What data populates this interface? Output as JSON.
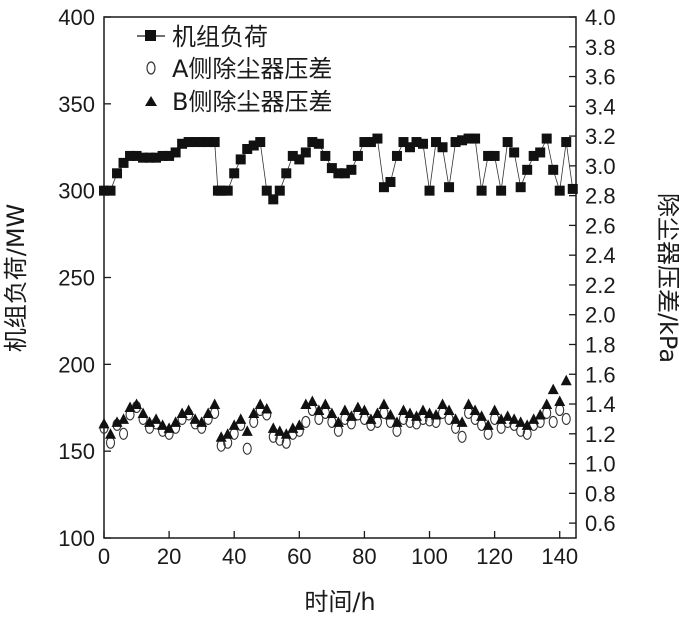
{
  "chart_data": {
    "type": "scatter",
    "xlabel": "时间/h",
    "ylabel_left": "机组负荷/MW",
    "ylabel_right": "除尘器压差/kPa",
    "xlim": [
      0,
      145
    ],
    "ylim_left": [
      100,
      400
    ],
    "ylim_right": [
      0.5,
      4.0
    ],
    "x_ticks": [
      "0",
      "20",
      "40",
      "60",
      "80",
      "100",
      "120",
      "140"
    ],
    "y_left_ticks": [
      "100",
      "150",
      "200",
      "250",
      "300",
      "350",
      "400"
    ],
    "y_right_ticks": [
      "0.6",
      "0.8",
      "1.0",
      "1.2",
      "1.4",
      "1.6",
      "1.8",
      "2.0",
      "2.2",
      "2.4",
      "2.6",
      "2.8",
      "3.0",
      "3.2",
      "3.4",
      "3.6",
      "3.8",
      "4.0"
    ],
    "legend_position": "top-left",
    "series": [
      {
        "name": "机组负荷",
        "axis": "left",
        "marker": "square",
        "connected": true,
        "x": [
          0,
          2,
          4,
          6,
          8,
          10,
          12,
          14,
          16,
          18,
          20,
          22,
          24,
          26,
          28,
          30,
          32,
          34,
          35,
          36,
          38,
          40,
          42,
          44,
          46,
          48,
          50,
          52,
          54,
          56,
          58,
          60,
          62,
          64,
          66,
          68,
          70,
          72,
          74,
          76,
          78,
          80,
          82,
          84,
          86,
          88,
          90,
          92,
          94,
          96,
          98,
          100,
          102,
          104,
          106,
          108,
          110,
          112,
          114,
          116,
          118,
          120,
          122,
          124,
          126,
          128,
          130,
          132,
          134,
          136,
          138,
          140,
          142,
          144
        ],
        "values": [
          300,
          300,
          310,
          316,
          320,
          320,
          319,
          319,
          319,
          320,
          320,
          322,
          327,
          328,
          328,
          328,
          328,
          328,
          300,
          300,
          300,
          310,
          318,
          324,
          326,
          328,
          300,
          295,
          300,
          310,
          320,
          318,
          322,
          328,
          327,
          320,
          313,
          310,
          310,
          312,
          320,
          328,
          328,
          330,
          302,
          305,
          320,
          328,
          325,
          328,
          327,
          300,
          328,
          325,
          302,
          328,
          329,
          330,
          330,
          300,
          320,
          320,
          300,
          328,
          322,
          302,
          312,
          320,
          322,
          330,
          312,
          300,
          328,
          301
        ]
      },
      {
        "name": "A侧除尘器压差",
        "axis": "right",
        "marker": "circle-open",
        "x": [
          0,
          2,
          4,
          6,
          8,
          10,
          12,
          14,
          16,
          18,
          20,
          22,
          24,
          26,
          28,
          30,
          32,
          34,
          36,
          38,
          40,
          42,
          44,
          46,
          48,
          50,
          52,
          54,
          56,
          58,
          60,
          62,
          64,
          66,
          68,
          70,
          72,
          74,
          76,
          78,
          80,
          82,
          84,
          86,
          88,
          90,
          92,
          94,
          96,
          98,
          100,
          102,
          104,
          106,
          108,
          110,
          112,
          114,
          116,
          118,
          120,
          122,
          124,
          126,
          128,
          130,
          132,
          134,
          136,
          138,
          140,
          142
        ],
        "values": [
          1.24,
          1.14,
          1.26,
          1.2,
          1.33,
          1.38,
          1.3,
          1.24,
          1.27,
          1.22,
          1.2,
          1.24,
          1.3,
          1.33,
          1.27,
          1.24,
          1.3,
          1.34,
          1.12,
          1.14,
          1.2,
          1.26,
          1.1,
          1.28,
          1.36,
          1.33,
          1.18,
          1.16,
          1.14,
          1.2,
          1.22,
          1.28,
          1.36,
          1.3,
          1.34,
          1.28,
          1.22,
          1.3,
          1.27,
          1.33,
          1.3,
          1.26,
          1.28,
          1.34,
          1.28,
          1.22,
          1.3,
          1.28,
          1.27,
          1.3,
          1.29,
          1.28,
          1.34,
          1.3,
          1.24,
          1.18,
          1.34,
          1.3,
          1.26,
          1.2,
          1.3,
          1.24,
          1.28,
          1.26,
          1.22,
          1.2,
          1.26,
          1.28,
          1.34,
          1.28,
          1.36,
          1.3
        ]
      },
      {
        "name": "B侧除尘器压差",
        "axis": "right",
        "marker": "triangle-filled",
        "x": [
          0,
          2,
          4,
          6,
          8,
          10,
          12,
          14,
          16,
          18,
          20,
          22,
          24,
          26,
          28,
          30,
          32,
          34,
          36,
          38,
          40,
          42,
          44,
          46,
          48,
          50,
          52,
          54,
          56,
          58,
          60,
          62,
          64,
          66,
          68,
          70,
          72,
          74,
          76,
          78,
          80,
          82,
          84,
          86,
          88,
          90,
          92,
          94,
          96,
          98,
          100,
          102,
          104,
          106,
          108,
          110,
          112,
          114,
          116,
          118,
          120,
          122,
          124,
          126,
          128,
          130,
          132,
          134,
          136,
          138,
          140,
          142
        ],
        "values": [
          1.27,
          1.2,
          1.28,
          1.3,
          1.38,
          1.4,
          1.34,
          1.28,
          1.3,
          1.26,
          1.24,
          1.28,
          1.34,
          1.36,
          1.3,
          1.28,
          1.34,
          1.4,
          1.18,
          1.2,
          1.26,
          1.3,
          1.22,
          1.34,
          1.4,
          1.37,
          1.24,
          1.22,
          1.2,
          1.24,
          1.26,
          1.4,
          1.42,
          1.36,
          1.4,
          1.34,
          1.28,
          1.36,
          1.32,
          1.38,
          1.36,
          1.3,
          1.34,
          1.4,
          1.33,
          1.28,
          1.36,
          1.34,
          1.32,
          1.36,
          1.34,
          1.33,
          1.4,
          1.36,
          1.3,
          1.28,
          1.4,
          1.36,
          1.32,
          1.26,
          1.36,
          1.3,
          1.32,
          1.3,
          1.28,
          1.26,
          1.3,
          1.33,
          1.4,
          1.5,
          1.42,
          1.56
        ]
      }
    ]
  }
}
